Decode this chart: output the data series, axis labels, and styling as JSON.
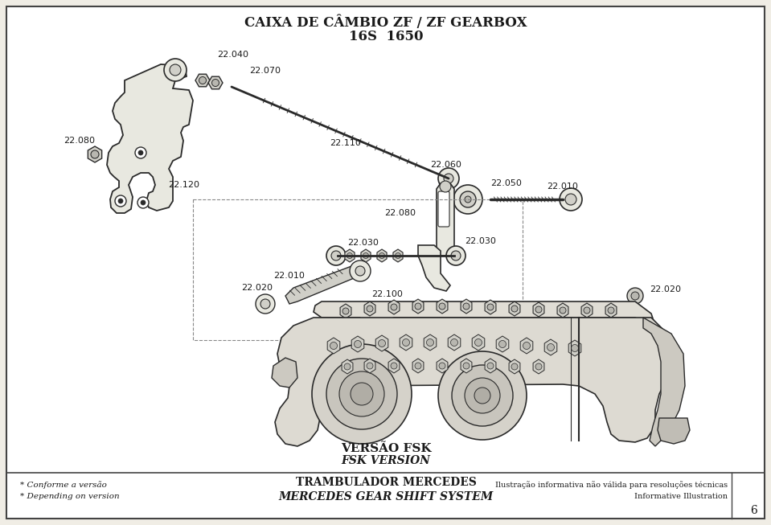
{
  "bg_color": "#ffffff",
  "page_bg": "#f0ede5",
  "border_color": "#444444",
  "title_line1": "CAIXA DE CÂMBIO ZF / ZF GEARBOX",
  "title_line2": "16S  1650",
  "version_label_bold": "VERSÃO FSK",
  "version_label_italic": "FSK VERSION",
  "bottom_left_line1": "* Conforme a versão",
  "bottom_left_line2": "* Depending on version",
  "bottom_center_line1": "TRAMBULADOR MERCEDES",
  "bottom_center_line2": "MERCEDES GEAR SHIFT SYSTEM",
  "bottom_right_line1": "Ilustração informativa não válida para resoluções técnicas",
  "bottom_right_line2": "Informative Illustration",
  "page_number": "6",
  "text_color": "#1a1a1a",
  "line_color": "#2a2a2a",
  "fill_light": "#e8e8e0",
  "fill_mid": "#d0cfc8",
  "fill_dark": "#b8b7b0"
}
